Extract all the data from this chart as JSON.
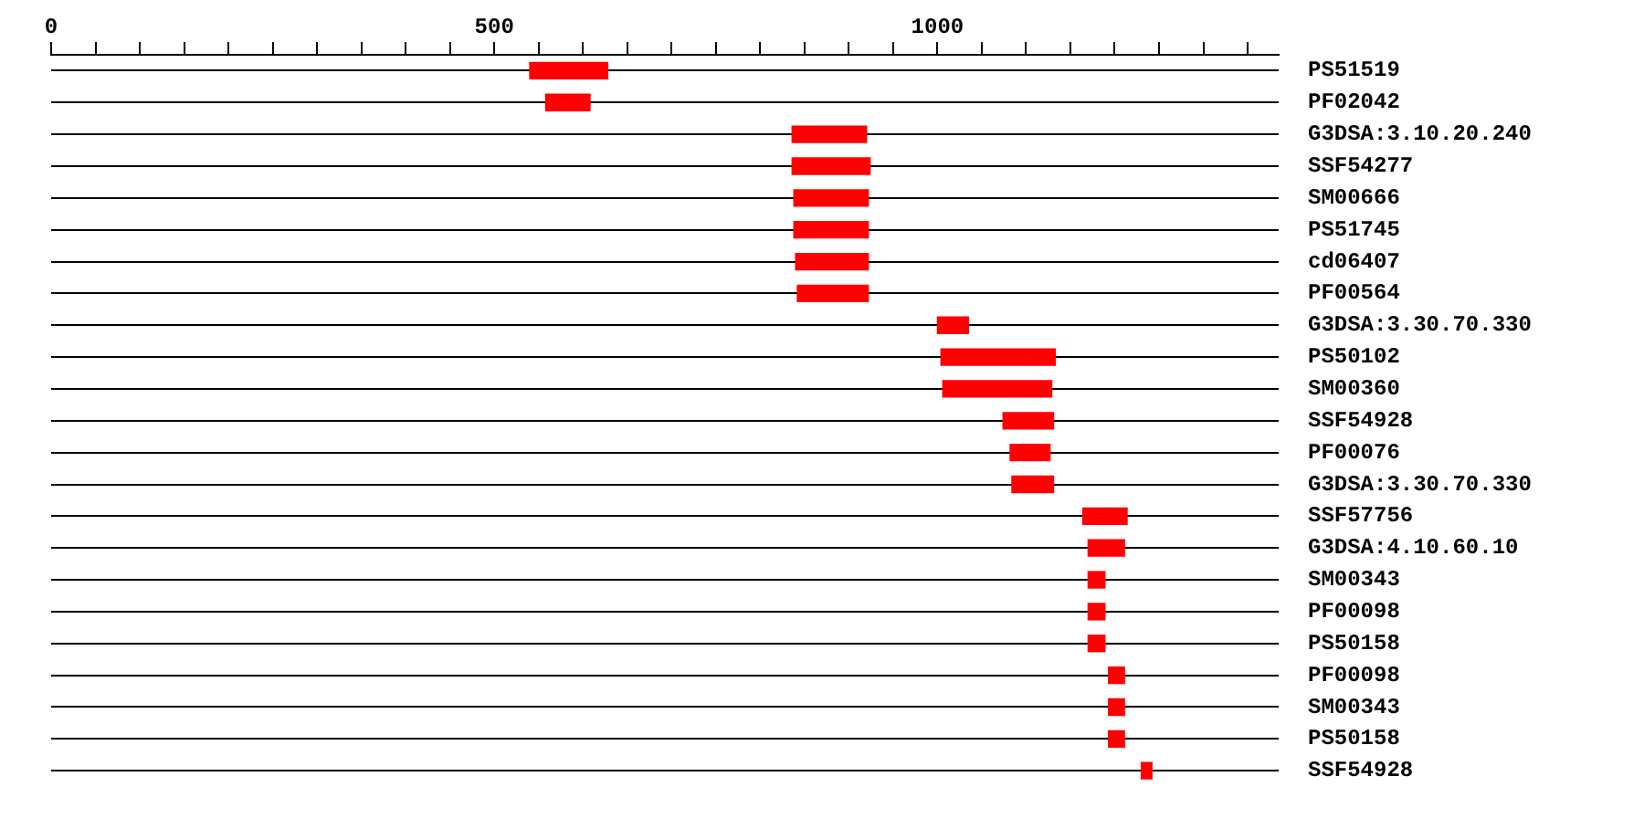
{
  "chart_data": {
    "type": "bar",
    "orientation": "horizontal",
    "color": "#ff0000",
    "grid": "y",
    "categories": [
      "PS51519",
      "PF02042",
      "G3DSA:3.10.20.240",
      "SSF54277",
      "SM00666",
      "PS51745",
      "cd06407",
      "PF00564",
      "G3DSA:3.30.70.330",
      "PS50102",
      "SM00360",
      "SSF54928",
      "PF00076",
      "G3DSA:3.30.70.330",
      "SSF57756",
      "G3DSA:4.10.60.10",
      "SM00343",
      "PF00098",
      "PS50158",
      "PF00098",
      "SM00343",
      "PS50158",
      "SSF54928"
    ],
    "base": [
      540,
      558,
      836,
      836,
      838,
      838,
      840,
      842,
      1000,
      1004,
      1006,
      1074,
      1082,
      1084,
      1164,
      1170,
      1170,
      1170,
      1170,
      1193,
      1193,
      1193,
      1230
    ],
    "values": [
      88,
      50,
      84,
      88,
      84,
      84,
      82,
      80,
      35,
      129,
      123,
      57,
      45,
      47,
      50,
      41,
      19,
      19,
      19,
      18,
      18,
      18,
      12
    ],
    "xlim": [
      0,
      1385
    ],
    "xticks": [
      0,
      {
        "value": 50,
        "label": null
      },
      {
        "value": 100,
        "label": null
      },
      {
        "value": 150,
        "label": null
      },
      {
        "value": 200,
        "label": null
      },
      {
        "value": 250,
        "label": null
      },
      {
        "value": 300,
        "label": null
      },
      {
        "value": 350,
        "label": null
      },
      {
        "value": 400,
        "label": null
      },
      {
        "value": 450,
        "label": null
      },
      500,
      {
        "value": 550,
        "label": null
      },
      {
        "value": 600,
        "label": null
      },
      {
        "value": 650,
        "label": null
      },
      {
        "value": 700,
        "label": null
      },
      {
        "value": 750,
        "label": null
      },
      {
        "value": 800,
        "label": null
      },
      {
        "value": 850,
        "label": null
      },
      {
        "value": 900,
        "label": null
      },
      {
        "value": 950,
        "label": null
      },
      1000,
      {
        "value": 1050,
        "label": null
      },
      {
        "value": 1100,
        "label": null
      },
      {
        "value": 1150,
        "label": null
      },
      {
        "value": 1200,
        "label": null
      },
      {
        "value": 1250,
        "label": null
      },
      {
        "value": 1300,
        "label": null
      },
      {
        "value": 1350,
        "label": null
      }
    ]
  }
}
